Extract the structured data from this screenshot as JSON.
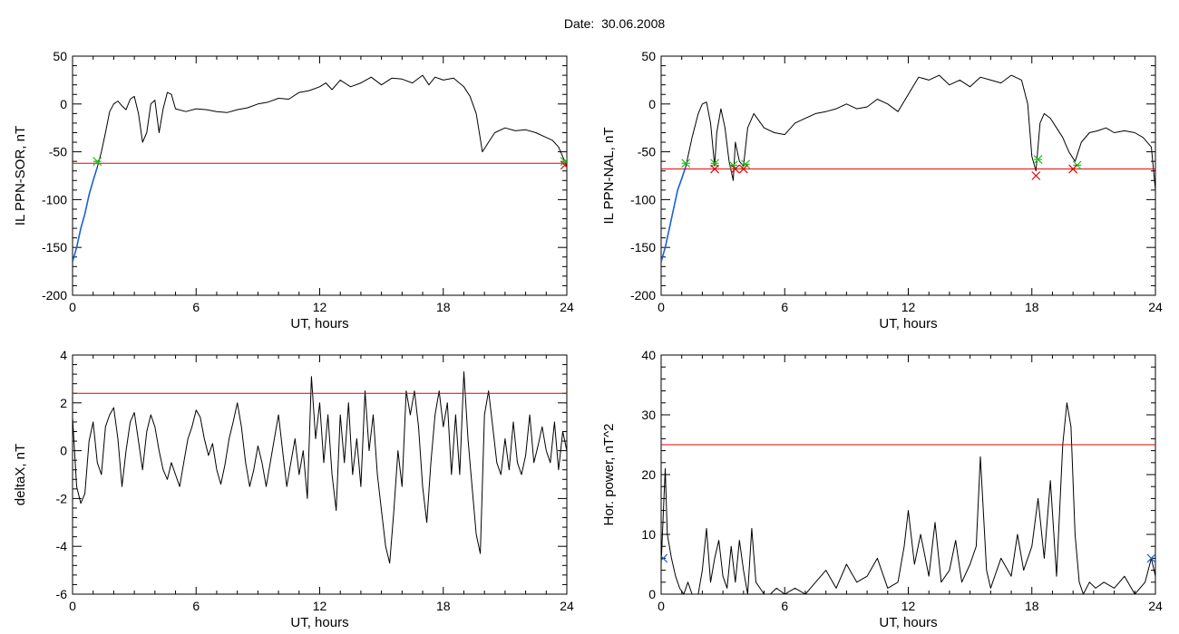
{
  "figure": {
    "title": "Date:  30.06.2008"
  },
  "colors": {
    "trace": "#000000",
    "threshold": "#e00000",
    "highlight": "#1f5fd6",
    "start_marker": "#22bb22",
    "end_marker": "#e00000",
    "power_marker": "#1f5fd6"
  },
  "chart_data": [
    {
      "id": "ppn_sor",
      "type": "line",
      "xlabel": "UT, hours",
      "ylabel": "IL PPN-SOR, nT",
      "xlim": [
        0,
        24
      ],
      "ylim": [
        -200,
        50
      ],
      "xticks": [
        "0",
        "6",
        "12",
        "18",
        "24"
      ],
      "yticks": [
        "50",
        "0",
        "-50",
        "-100",
        "-150",
        "-200"
      ],
      "threshold": -62,
      "series": [
        {
          "role": "trace",
          "x": [
            0,
            0.2,
            0.4,
            0.6,
            0.8,
            1.0,
            1.2,
            1.4,
            1.6,
            1.8,
            2.0,
            2.2,
            2.4,
            2.6,
            2.8,
            3.0,
            3.2,
            3.4,
            3.6,
            3.8,
            4.0,
            4.2,
            4.4,
            4.6,
            4.8,
            5.0,
            5.5,
            6.0,
            6.5,
            7.0,
            7.5,
            8.0,
            8.5,
            9.0,
            9.5,
            10.0,
            10.5,
            11.0,
            11.5,
            12.0,
            12.3,
            12.6,
            13.0,
            13.5,
            14.0,
            14.5,
            15.0,
            15.5,
            16.0,
            16.5,
            17.0,
            17.3,
            17.6,
            18.0,
            18.5,
            19.0,
            19.3,
            19.6,
            19.9,
            20.2,
            20.5,
            21.0,
            21.5,
            22.0,
            22.5,
            23.0,
            23.3,
            23.6,
            23.8,
            24.0
          ],
          "y": [
            -165,
            -150,
            -130,
            -115,
            -95,
            -80,
            -66,
            -50,
            -30,
            -8,
            0,
            3,
            -2,
            -6,
            5,
            8,
            -10,
            -40,
            -30,
            0,
            4,
            -30,
            -5,
            12,
            10,
            -5,
            -8,
            -5,
            -6,
            -8,
            -9,
            -6,
            -4,
            0,
            2,
            6,
            5,
            12,
            14,
            18,
            22,
            15,
            25,
            18,
            22,
            28,
            20,
            27,
            26,
            22,
            30,
            20,
            28,
            25,
            27,
            18,
            8,
            -10,
            -50,
            -40,
            -30,
            -25,
            -28,
            -27,
            -30,
            -35,
            -38,
            -45,
            -55,
            -65
          ]
        },
        {
          "role": "highlight",
          "x": [
            0,
            0.2,
            0.4,
            0.6,
            0.8,
            1.0,
            1.2
          ],
          "y": [
            -165,
            -150,
            -130,
            -115,
            -95,
            -80,
            -66
          ]
        }
      ],
      "markers": [
        {
          "role": "start",
          "x": [
            1.2,
            23.9
          ],
          "y": [
            -60,
            -60
          ]
        },
        {
          "role": "end",
          "x": [
            23.9
          ],
          "y": [
            -64
          ]
        }
      ]
    },
    {
      "id": "ppn_nal",
      "type": "line",
      "xlabel": "UT, hours",
      "ylabel": "IL PPN-NAL, nT",
      "xlim": [
        0,
        24
      ],
      "ylim": [
        -200,
        50
      ],
      "xticks": [
        "0",
        "6",
        "12",
        "18",
        "24"
      ],
      "yticks": [
        "50",
        "0",
        "-50",
        "-100",
        "-150",
        "-200"
      ],
      "threshold": -68,
      "series": [
        {
          "role": "trace",
          "x": [
            0,
            0.2,
            0.4,
            0.6,
            0.8,
            1.0,
            1.2,
            1.5,
            1.8,
            2.0,
            2.2,
            2.4,
            2.6,
            2.7,
            2.9,
            3.1,
            3.3,
            3.5,
            3.6,
            3.8,
            4.0,
            4.2,
            4.5,
            5.0,
            5.5,
            6.0,
            6.5,
            7.0,
            7.5,
            8.0,
            8.5,
            9.0,
            9.5,
            10.0,
            10.5,
            11.0,
            11.5,
            12.0,
            12.5,
            13.0,
            13.5,
            14.0,
            14.5,
            15.0,
            15.5,
            16.0,
            16.5,
            17.0,
            17.5,
            17.8,
            18.0,
            18.2,
            18.4,
            18.6,
            18.9,
            19.2,
            19.5,
            19.8,
            20.1,
            20.4,
            20.8,
            21.2,
            21.6,
            22.0,
            22.5,
            23.0,
            23.4,
            23.8,
            24.0
          ],
          "y": [
            -165,
            -150,
            -130,
            -110,
            -90,
            -78,
            -65,
            -35,
            -10,
            0,
            2,
            -20,
            -65,
            -30,
            -5,
            -25,
            -60,
            -80,
            -40,
            -60,
            -65,
            -25,
            -10,
            -25,
            -30,
            -32,
            -20,
            -15,
            -10,
            -8,
            -5,
            0,
            -5,
            -3,
            5,
            0,
            -8,
            10,
            28,
            25,
            30,
            20,
            25,
            18,
            28,
            25,
            22,
            30,
            25,
            0,
            -55,
            -70,
            -20,
            -10,
            -15,
            -25,
            -35,
            -50,
            -60,
            -40,
            -30,
            -28,
            -25,
            -30,
            -28,
            -30,
            -35,
            -45,
            -90
          ]
        },
        {
          "role": "highlight",
          "x": [
            0,
            0.2,
            0.4,
            0.6,
            0.8,
            1.0,
            1.2
          ],
          "y": [
            -165,
            -150,
            -130,
            -110,
            -90,
            -78,
            -65
          ]
        }
      ],
      "markers": [
        {
          "role": "start",
          "x": [
            1.2,
            2.6,
            3.5,
            4.1,
            18.3,
            20.2
          ],
          "y": [
            -62,
            -62,
            -64,
            -63,
            -58,
            -64
          ]
        },
        {
          "role": "end",
          "x": [
            2.6,
            3.6,
            4.0,
            18.2,
            20.0
          ],
          "y": [
            -68,
            -68,
            -68,
            -75,
            -68
          ]
        }
      ]
    },
    {
      "id": "delta_x",
      "type": "line",
      "xlabel": "UT, hours",
      "ylabel": "deltaX, nT",
      "xlim": [
        0,
        24
      ],
      "ylim": [
        -6,
        4
      ],
      "xticks": [
        "0",
        "6",
        "12",
        "18",
        "24"
      ],
      "yticks": [
        "4",
        "2",
        "0",
        "-2",
        "-4",
        "-6"
      ],
      "threshold": 2.4,
      "series": [
        {
          "role": "trace",
          "x": [
            0,
            0.2,
            0.4,
            0.6,
            0.8,
            1.0,
            1.2,
            1.4,
            1.6,
            1.8,
            2.0,
            2.2,
            2.4,
            2.6,
            2.8,
            3.0,
            3.2,
            3.4,
            3.6,
            3.8,
            4.0,
            4.2,
            4.4,
            4.6,
            4.8,
            5.0,
            5.2,
            5.4,
            5.6,
            5.8,
            6.0,
            6.2,
            6.4,
            6.6,
            6.8,
            7.0,
            7.2,
            7.4,
            7.6,
            7.8,
            8.0,
            8.2,
            8.4,
            8.6,
            8.8,
            9.0,
            9.2,
            9.4,
            9.6,
            9.8,
            10.0,
            10.2,
            10.4,
            10.6,
            10.8,
            11.0,
            11.2,
            11.4,
            11.6,
            11.8,
            12.0,
            12.2,
            12.4,
            12.6,
            12.8,
            13.0,
            13.2,
            13.4,
            13.6,
            13.8,
            14.0,
            14.2,
            14.4,
            14.6,
            14.8,
            15.0,
            15.2,
            15.4,
            15.6,
            15.8,
            16.0,
            16.2,
            16.4,
            16.6,
            16.8,
            17.0,
            17.2,
            17.4,
            17.6,
            17.8,
            18.0,
            18.2,
            18.4,
            18.6,
            18.8,
            19.0,
            19.2,
            19.4,
            19.6,
            19.8,
            20.0,
            20.2,
            20.4,
            20.6,
            20.8,
            21.0,
            21.2,
            21.4,
            21.6,
            21.8,
            22.0,
            22.2,
            22.4,
            22.6,
            22.8,
            23.0,
            23.2,
            23.4,
            23.6,
            23.8,
            24.0
          ],
          "y": [
            1.4,
            -1.5,
            -2.2,
            -1.8,
            0.4,
            1.2,
            -0.5,
            -1.0,
            1.0,
            1.5,
            1.8,
            0.5,
            -1.5,
            0.0,
            1.2,
            1.6,
            0.4,
            -0.8,
            0.8,
            1.5,
            1.0,
            0.0,
            -0.8,
            -1.2,
            -0.5,
            -1.0,
            -1.5,
            -0.5,
            0.5,
            1.0,
            1.7,
            1.4,
            0.5,
            -0.2,
            0.3,
            -0.8,
            -1.4,
            -0.6,
            0.5,
            1.2,
            2.0,
            1.0,
            -0.5,
            -1.5,
            -0.8,
            0.2,
            -0.5,
            -1.5,
            -0.5,
            0.5,
            1.5,
            0.0,
            -1.5,
            -0.5,
            0.5,
            -1.0,
            0.0,
            -2.0,
            3.1,
            0.5,
            2.0,
            -0.5,
            1.5,
            -1.0,
            -2.5,
            1.5,
            -0.5,
            2.0,
            -1.0,
            0.5,
            -1.5,
            2.5,
            0.0,
            1.5,
            -1.0,
            -2.5,
            -4.0,
            -4.7,
            -2.5,
            0.0,
            -1.5,
            2.5,
            1.5,
            2.5,
            1.0,
            -1.5,
            -3.0,
            -0.5,
            1.5,
            2.5,
            1.0,
            2.0,
            -1.0,
            1.5,
            -1.0,
            3.3,
            0.5,
            -1.5,
            -3.5,
            -4.3,
            1.5,
            2.5,
            1.0,
            -0.5,
            -1.0,
            0.5,
            -0.8,
            1.2,
            -0.5,
            -1.0,
            -0.2,
            1.5,
            -0.5,
            0.2,
            1.0,
            0.0,
            -0.5,
            1.2,
            -0.8,
            0.8,
            0.0
          ]
        }
      ],
      "markers": []
    },
    {
      "id": "hor_power",
      "type": "line",
      "xlabel": "UT, hours",
      "ylabel": "Hor. power, nT^2",
      "xlim": [
        0,
        24
      ],
      "ylim": [
        0,
        40
      ],
      "xticks": [
        "0",
        "6",
        "12",
        "18",
        "24"
      ],
      "yticks": [
        "40",
        "30",
        "20",
        "10",
        "0"
      ],
      "threshold": 25,
      "series": [
        {
          "role": "trace",
          "x": [
            0,
            0.2,
            0.3,
            0.5,
            0.7,
            0.9,
            1.1,
            1.3,
            1.5,
            1.8,
            2.0,
            2.2,
            2.4,
            2.6,
            2.8,
            3.0,
            3.2,
            3.4,
            3.6,
            3.8,
            4.0,
            4.2,
            4.4,
            4.6,
            4.8,
            5.0,
            5.3,
            5.6,
            6.0,
            6.5,
            7.0,
            7.5,
            8.0,
            8.5,
            9.0,
            9.5,
            10.0,
            10.5,
            11.0,
            11.5,
            11.8,
            12.0,
            12.3,
            12.6,
            13.0,
            13.3,
            13.6,
            14.0,
            14.3,
            14.6,
            15.0,
            15.3,
            15.5,
            15.8,
            16.0,
            16.5,
            17.0,
            17.3,
            17.6,
            18.0,
            18.3,
            18.6,
            18.9,
            19.2,
            19.5,
            19.7,
            19.9,
            20.1,
            20.3,
            20.5,
            20.8,
            21.1,
            21.5,
            22.0,
            22.5,
            23.0,
            23.5,
            23.8,
            24.0
          ],
          "y": [
            5,
            21,
            10,
            6,
            3,
            1,
            0,
            2,
            0,
            0,
            4,
            11,
            2,
            6,
            9,
            3,
            1,
            8,
            2,
            9,
            4,
            0,
            11,
            2,
            1,
            0,
            0,
            1,
            0,
            1,
            0,
            2,
            4,
            1,
            5,
            2,
            3,
            6,
            1,
            2,
            8,
            14,
            5,
            10,
            3,
            12,
            2,
            4,
            9,
            2,
            5,
            8,
            23,
            4,
            1,
            6,
            3,
            10,
            4,
            8,
            16,
            6,
            19,
            3,
            25,
            32,
            28,
            10,
            2,
            0,
            2,
            1,
            2,
            1,
            3,
            0,
            2,
            6,
            3
          ]
        }
      ],
      "markers": [
        {
          "role": "power",
          "x": [
            0.1,
            23.8
          ],
          "y": [
            6,
            6
          ]
        }
      ]
    }
  ]
}
